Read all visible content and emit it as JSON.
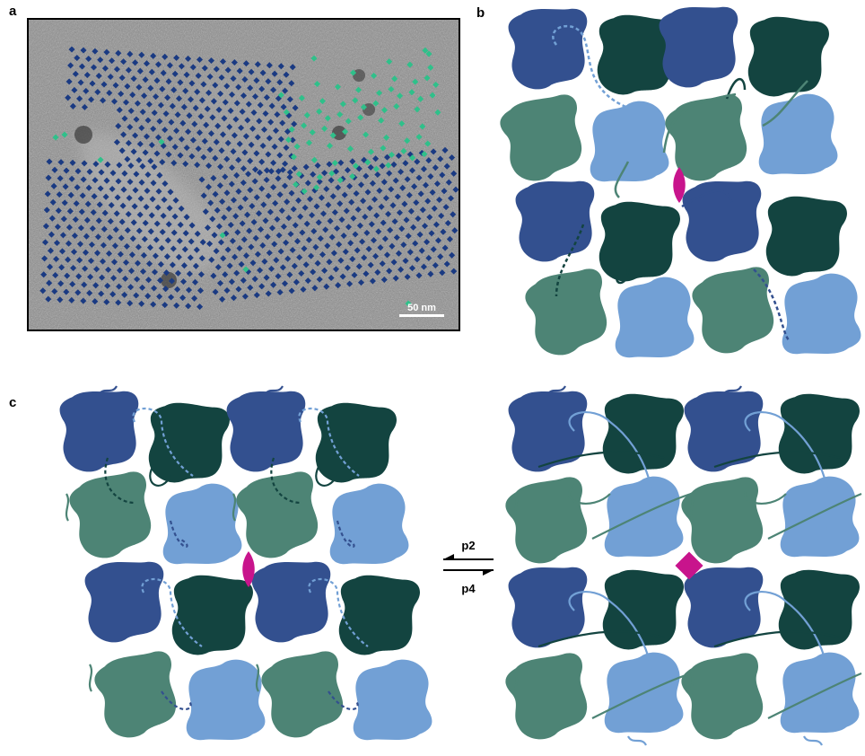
{
  "panels": {
    "a": {
      "letter": "a",
      "scale_bar_label": "50 nm"
    },
    "b": {
      "letter": "b"
    },
    "c": {
      "letter": "c"
    }
  },
  "equilibrium": {
    "forward_label": "p2",
    "reverse_label": "p4"
  },
  "colors": {
    "dark_blue": "#33508f",
    "dark_green": "#134440",
    "mid_green": "#4d8475",
    "light_blue": "#72a0d5",
    "symmetry_marker": "#c8148c",
    "micrograph_bg": "#8e8e8e",
    "particle_blue": "#1a3a82",
    "particle_green": "#2fc08a"
  },
  "symmetry_markers": {
    "panel_b": "2-fold",
    "panel_c_left": "2-fold",
    "panel_c_right": "4-fold"
  }
}
